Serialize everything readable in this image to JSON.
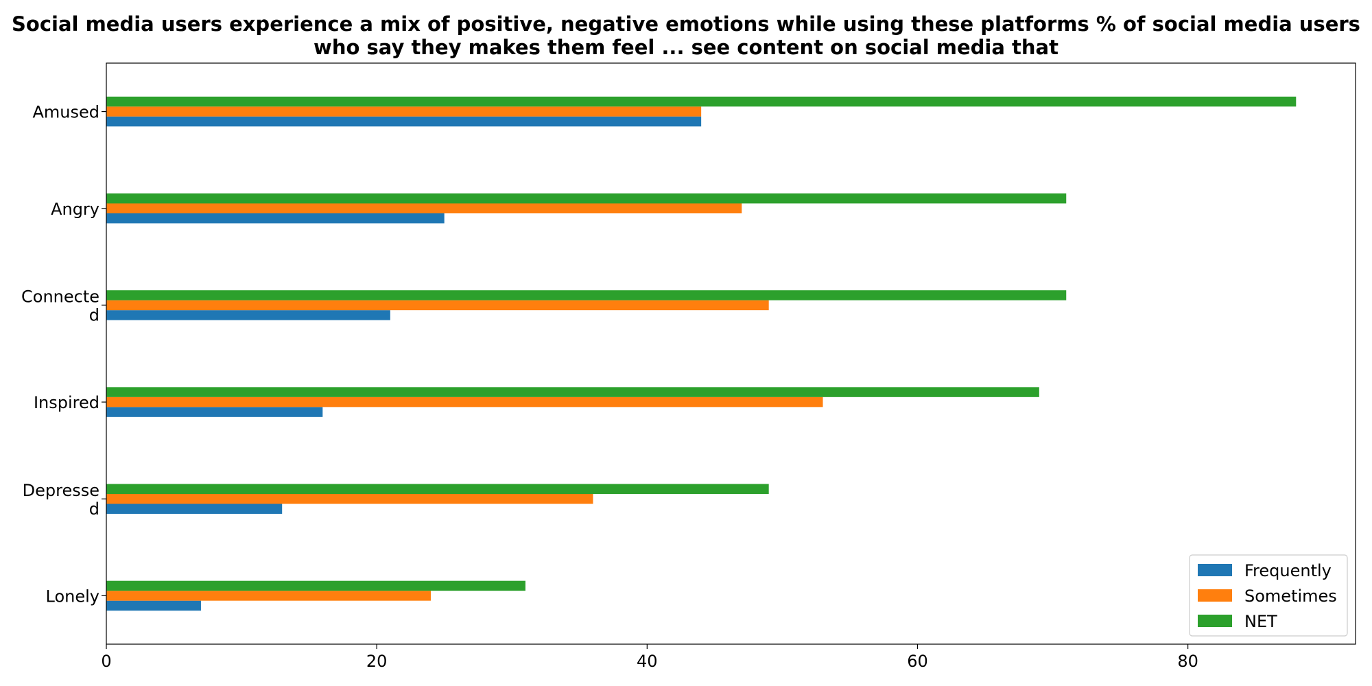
{
  "chart_data": {
    "type": "bar",
    "orientation": "horizontal",
    "title_lines": [
      "Social media users experience a mix of positive, negative emotions while using these platforms % of social media users",
      "who say they makes them feel ... see content on social media that"
    ],
    "categories": [
      "Amused",
      "Angry",
      "Connected",
      "Inspired",
      "Depressed",
      "Lonely"
    ],
    "category_label_lines": [
      [
        "Amused"
      ],
      [
        "Angry"
      ],
      [
        "Connecte",
        "d"
      ],
      [
        "Inspired"
      ],
      [
        "Depresse",
        "d"
      ],
      [
        "Lonely"
      ]
    ],
    "series": [
      {
        "name": "Frequently",
        "color": "#1f77b4",
        "values": [
          44,
          25,
          21,
          16,
          13,
          7
        ]
      },
      {
        "name": "Sometimes",
        "color": "#ff7f0e",
        "values": [
          44,
          47,
          49,
          53,
          36,
          24
        ]
      },
      {
        "name": "NET",
        "color": "#2ca02c",
        "values": [
          88,
          71,
          71,
          69,
          49,
          31
        ]
      }
    ],
    "xlim": [
      0,
      92.4
    ],
    "xticks": [
      0,
      20,
      40,
      60,
      80
    ],
    "xlabel": "",
    "ylabel": "",
    "grid": false,
    "legend_position": "lower-right"
  }
}
